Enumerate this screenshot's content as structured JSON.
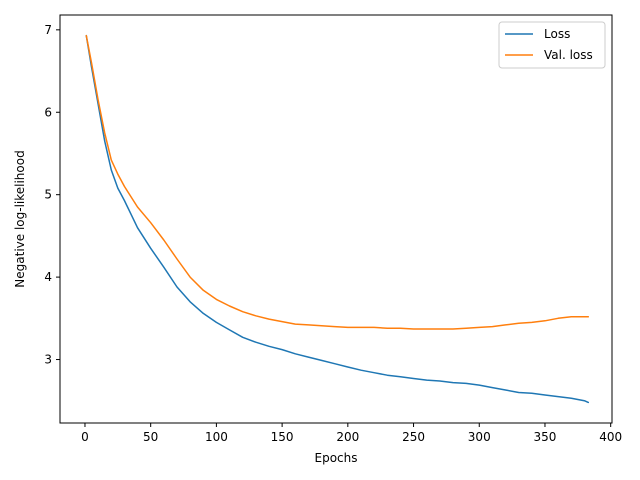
{
  "chart_data": {
    "type": "line",
    "title": "",
    "xlabel": "Epochs",
    "ylabel": "Negative log-likelihood",
    "xlim": [
      -19,
      401
    ],
    "ylim": [
      2.23,
      7.18
    ],
    "xticks": [
      0,
      50,
      100,
      150,
      200,
      250,
      300,
      350,
      400
    ],
    "yticks": [
      3,
      4,
      5,
      6,
      7
    ],
    "xtick_labels": [
      "0",
      "50",
      "100",
      "150",
      "200",
      "250",
      "300",
      "350",
      "400"
    ],
    "ytick_labels": [
      "3",
      "4",
      "5",
      "6",
      "7"
    ],
    "grid": false,
    "legend_position": "top-right",
    "series": [
      {
        "name": "Loss",
        "color": "#1f77b4",
        "x": [
          1,
          5,
          10,
          15,
          20,
          25,
          30,
          40,
          50,
          60,
          70,
          80,
          90,
          100,
          110,
          120,
          130,
          140,
          150,
          160,
          170,
          180,
          190,
          200,
          210,
          220,
          230,
          240,
          250,
          260,
          270,
          280,
          290,
          300,
          310,
          320,
          330,
          340,
          350,
          360,
          370,
          380,
          383
        ],
        "values": [
          6.93,
          6.55,
          6.1,
          5.65,
          5.3,
          5.08,
          4.93,
          4.6,
          4.35,
          4.12,
          3.88,
          3.7,
          3.56,
          3.45,
          3.36,
          3.27,
          3.21,
          3.16,
          3.12,
          3.07,
          3.03,
          2.99,
          2.95,
          2.91,
          2.87,
          2.84,
          2.81,
          2.79,
          2.77,
          2.75,
          2.74,
          2.72,
          2.71,
          2.69,
          2.66,
          2.63,
          2.6,
          2.59,
          2.57,
          2.55,
          2.53,
          2.5,
          2.48
        ]
      },
      {
        "name": "Val. loss",
        "color": "#ff7f0e",
        "x": [
          1,
          5,
          10,
          15,
          20,
          25,
          30,
          40,
          50,
          60,
          70,
          80,
          90,
          100,
          110,
          120,
          130,
          140,
          150,
          160,
          170,
          180,
          190,
          200,
          210,
          220,
          230,
          240,
          250,
          260,
          270,
          280,
          290,
          300,
          310,
          320,
          330,
          340,
          350,
          360,
          370,
          380,
          383
        ],
        "values": [
          6.93,
          6.6,
          6.15,
          5.75,
          5.42,
          5.25,
          5.1,
          4.85,
          4.66,
          4.45,
          4.22,
          4.0,
          3.84,
          3.73,
          3.65,
          3.58,
          3.53,
          3.49,
          3.46,
          3.43,
          3.42,
          3.41,
          3.4,
          3.39,
          3.39,
          3.39,
          3.38,
          3.38,
          3.37,
          3.37,
          3.37,
          3.37,
          3.38,
          3.39,
          3.4,
          3.42,
          3.44,
          3.45,
          3.47,
          3.5,
          3.52,
          3.52,
          3.52
        ]
      }
    ]
  }
}
